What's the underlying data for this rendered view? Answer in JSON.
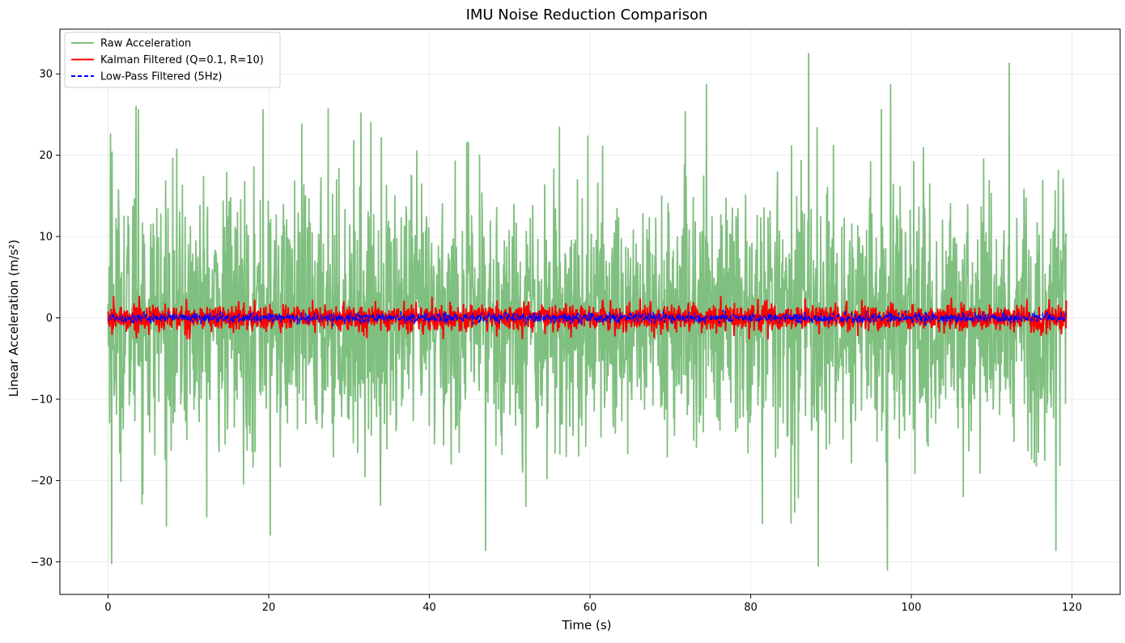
{
  "chart_data": {
    "type": "line",
    "title": "IMU Noise Reduction Comparison",
    "xlabel": "Time (s)",
    "ylabel": "Linear Acceleration (m/s²)",
    "xlim": [
      -6,
      126
    ],
    "ylim": [
      -34,
      35.5
    ],
    "xticks": [
      0,
      20,
      40,
      60,
      80,
      100,
      120
    ],
    "yticks": [
      -30,
      -20,
      -10,
      0,
      10,
      20,
      30
    ],
    "xtick_labels": [
      "0",
      "20",
      "40",
      "60",
      "80",
      "100",
      "120"
    ],
    "ytick_labels": [
      "−30",
      "−20",
      "−10",
      "0",
      "10",
      "20",
      "30"
    ],
    "grid": true,
    "legend_position": "top-left",
    "time_range": [
      0,
      119.3
    ],
    "series": [
      {
        "name": "Raw Acceleration",
        "color": "#7fbf7f",
        "style": "solid",
        "noise_std": 8,
        "peaks": [
          [
            0.3,
            22.6
          ],
          [
            0.5,
            -23.3
          ],
          [
            0.5,
            20.4
          ],
          [
            0.45,
            -30.2
          ],
          [
            3.5,
            26.0
          ],
          [
            3.8,
            25.6
          ],
          [
            19.3,
            25.6
          ],
          [
            20.2,
            -26.7
          ],
          [
            27.4,
            25.7
          ],
          [
            31.5,
            25.2
          ],
          [
            47.0,
            -28.6
          ],
          [
            74.5,
            28.7
          ],
          [
            87.2,
            32.5
          ],
          [
            88.4,
            -30.5
          ],
          [
            97.0,
            -31.0
          ],
          [
            97.4,
            28.7
          ],
          [
            112.2,
            31.3
          ],
          [
            118.0,
            -28.6
          ]
        ]
      },
      {
        "name": "Kalman Filtered (Q=0.1, R=10)",
        "color": "#ff0000",
        "style": "solid",
        "noise_std": 0.8,
        "peaks": [
          [
            0.7,
            2.6
          ],
          [
            3.9,
            2.6
          ],
          [
            76.3,
            2.6
          ],
          [
            105.0,
            2.4
          ],
          [
            86.8,
            2.3
          ],
          [
            0.5,
            -2.0
          ],
          [
            48.4,
            -2.2
          ],
          [
            68.0,
            -2.4
          ]
        ]
      },
      {
        "name": "Low-Pass Filtered (5Hz)",
        "color": "#0000ff",
        "style": "dashed",
        "noise_std": 0.3,
        "peaks": []
      }
    ]
  }
}
